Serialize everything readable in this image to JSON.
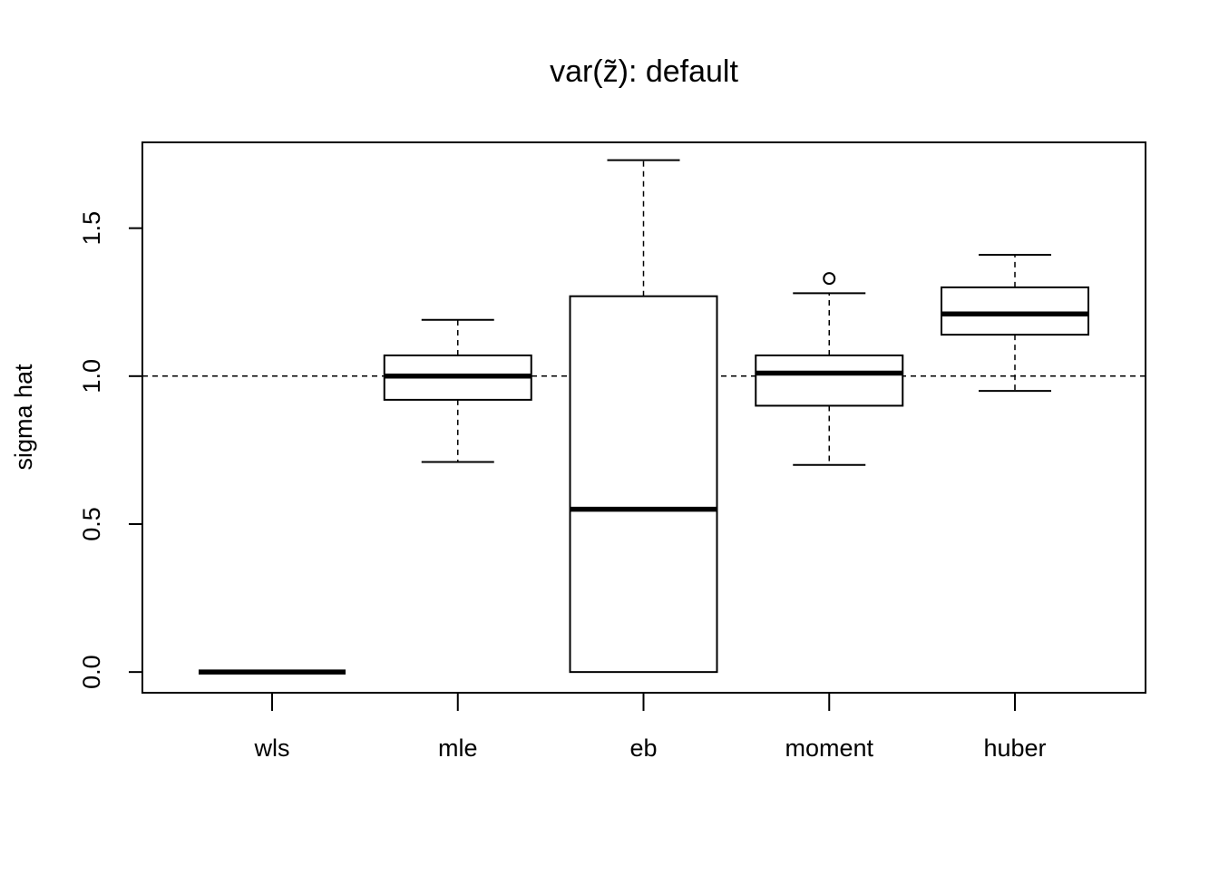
{
  "chart_data": {
    "type": "boxplot",
    "title": "var(z̃): default",
    "xlabel": "",
    "ylabel": "sigma hat",
    "ylim": [
      -0.07,
      1.79
    ],
    "yticks": [
      "0.0",
      "0.5",
      "1.0",
      "1.5"
    ],
    "ytick_values": [
      0.0,
      0.5,
      1.0,
      1.5
    ],
    "reference_line": {
      "y": 1.0,
      "style": "dashed"
    },
    "grid": false,
    "categories": [
      "wls",
      "mle",
      "eb",
      "moment",
      "huber"
    ],
    "boxes": [
      {
        "name": "wls",
        "whisker_low": 0.0,
        "q1": 0.0,
        "median": 0.0,
        "q3": 0.0,
        "whisker_high": 0.0,
        "outliers": []
      },
      {
        "name": "mle",
        "whisker_low": 0.71,
        "q1": 0.92,
        "median": 1.0,
        "q3": 1.07,
        "whisker_high": 1.19,
        "outliers": []
      },
      {
        "name": "eb",
        "whisker_low": 0.0,
        "q1": 0.0,
        "median": 0.55,
        "q3": 1.27,
        "whisker_high": 1.73,
        "outliers": []
      },
      {
        "name": "moment",
        "whisker_low": 0.7,
        "q1": 0.9,
        "median": 1.01,
        "q3": 1.07,
        "whisker_high": 1.28,
        "outliers": [
          1.33
        ]
      },
      {
        "name": "huber",
        "whisker_low": 0.95,
        "q1": 1.14,
        "median": 1.21,
        "q3": 1.3,
        "whisker_high": 1.41,
        "outliers": []
      }
    ]
  }
}
